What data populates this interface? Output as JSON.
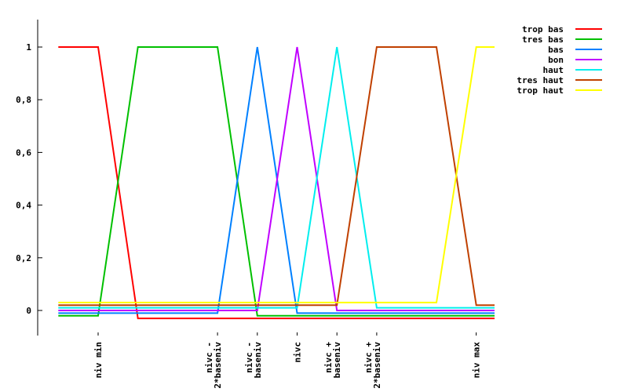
{
  "chart_data": {
    "type": "line",
    "title": "",
    "xlabel": "",
    "ylabel": "",
    "ylim": [
      -0.1,
      1.1
    ],
    "yticks": [
      {
        "value": 0,
        "label": "0"
      },
      {
        "value": 0.2,
        "label": "0,2"
      },
      {
        "value": 0.4,
        "label": "0,4"
      },
      {
        "value": 0.6,
        "label": "0,6"
      },
      {
        "value": 0.8,
        "label": "0,8"
      },
      {
        "value": 1,
        "label": "1"
      }
    ],
    "xlim": [
      -1,
      10
    ],
    "xticks": [
      {
        "value": 0,
        "lines": [
          "niv min"
        ]
      },
      {
        "value": 3,
        "lines": [
          "nivc -",
          "2*baseniv"
        ]
      },
      {
        "value": 4,
        "lines": [
          "nivc -",
          "baseniv"
        ]
      },
      {
        "value": 5,
        "lines": [
          "nivc"
        ]
      },
      {
        "value": 6,
        "lines": [
          "nivc +",
          "baseniv"
        ]
      },
      {
        "value": 7,
        "lines": [
          "nivc +",
          "2*baseniv"
        ]
      },
      {
        "value": 9.5,
        "lines": [
          "niv max"
        ]
      }
    ],
    "grid": false,
    "legend_position": "top-right",
    "series": [
      {
        "name": "trop bas",
        "color": "#ff0000",
        "x": [
          -1,
          0,
          1,
          10
        ],
        "y": [
          1,
          1,
          -0.03,
          -0.03
        ]
      },
      {
        "name": "tres bas",
        "color": "#00c000",
        "x": [
          -1,
          0,
          1,
          3,
          4,
          10
        ],
        "y": [
          -0.02,
          -0.02,
          1,
          1,
          -0.02,
          -0.02
        ]
      },
      {
        "name": "bas",
        "color": "#0080ff",
        "x": [
          -1,
          3,
          4,
          5,
          10
        ],
        "y": [
          -0.01,
          -0.01,
          1,
          -0.01,
          -0.01
        ]
      },
      {
        "name": "bon",
        "color": "#c000ff",
        "x": [
          -1,
          4,
          5,
          6,
          10
        ],
        "y": [
          0,
          0,
          1,
          0,
          0
        ]
      },
      {
        "name": "haut",
        "color": "#00eeee",
        "x": [
          -1,
          5,
          6,
          7,
          10
        ],
        "y": [
          0.01,
          0.01,
          1,
          0.01,
          0.01
        ]
      },
      {
        "name": "tres haut",
        "color": "#c04000",
        "x": [
          -1,
          6,
          7,
          8.5,
          9.5,
          10
        ],
        "y": [
          0.02,
          0.02,
          1,
          1,
          0.02,
          0.02
        ]
      },
      {
        "name": "trop haut",
        "color": "#ffff00",
        "x": [
          -1,
          8.5,
          9.5,
          10
        ],
        "y": [
          0.03,
          0.03,
          1,
          1
        ]
      }
    ]
  }
}
